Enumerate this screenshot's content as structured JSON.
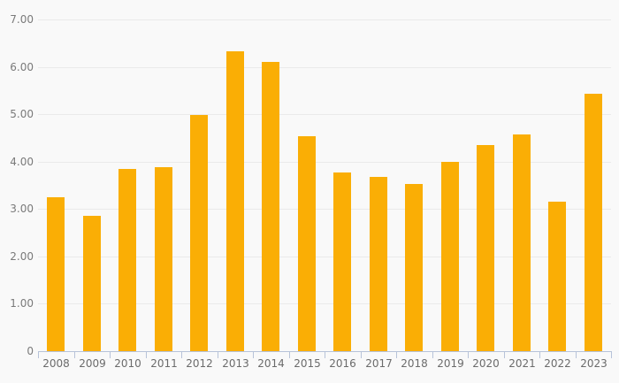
{
  "chart_data": {
    "type": "bar",
    "categories": [
      "2008",
      "2009",
      "2010",
      "2011",
      "2012",
      "2013",
      "2014",
      "2015",
      "2016",
      "2017",
      "2018",
      "2019",
      "2020",
      "2021",
      "2022",
      "2023"
    ],
    "values": [
      3.25,
      2.85,
      3.85,
      3.88,
      4.98,
      6.32,
      6.1,
      4.53,
      3.77,
      3.67,
      3.53,
      3.99,
      4.35,
      4.57,
      3.15,
      5.43
    ],
    "title": "",
    "xlabel": "",
    "ylabel": "",
    "ylim": [
      0,
      7
    ],
    "ytick_step": 1,
    "ytick_labels": [
      "0",
      "1.00",
      "2.00",
      "3.00",
      "4.00",
      "5.00",
      "6.00",
      "7.00"
    ],
    "grid": true,
    "legend": false,
    "colors": {
      "bar": "#FAAE05",
      "background": "#F9F9F9",
      "gridline": "#EAEAEA",
      "axis": "#B7C3D9",
      "y_label_text": "#7A7A7A",
      "x_label_text": "#6B6B6B"
    }
  }
}
